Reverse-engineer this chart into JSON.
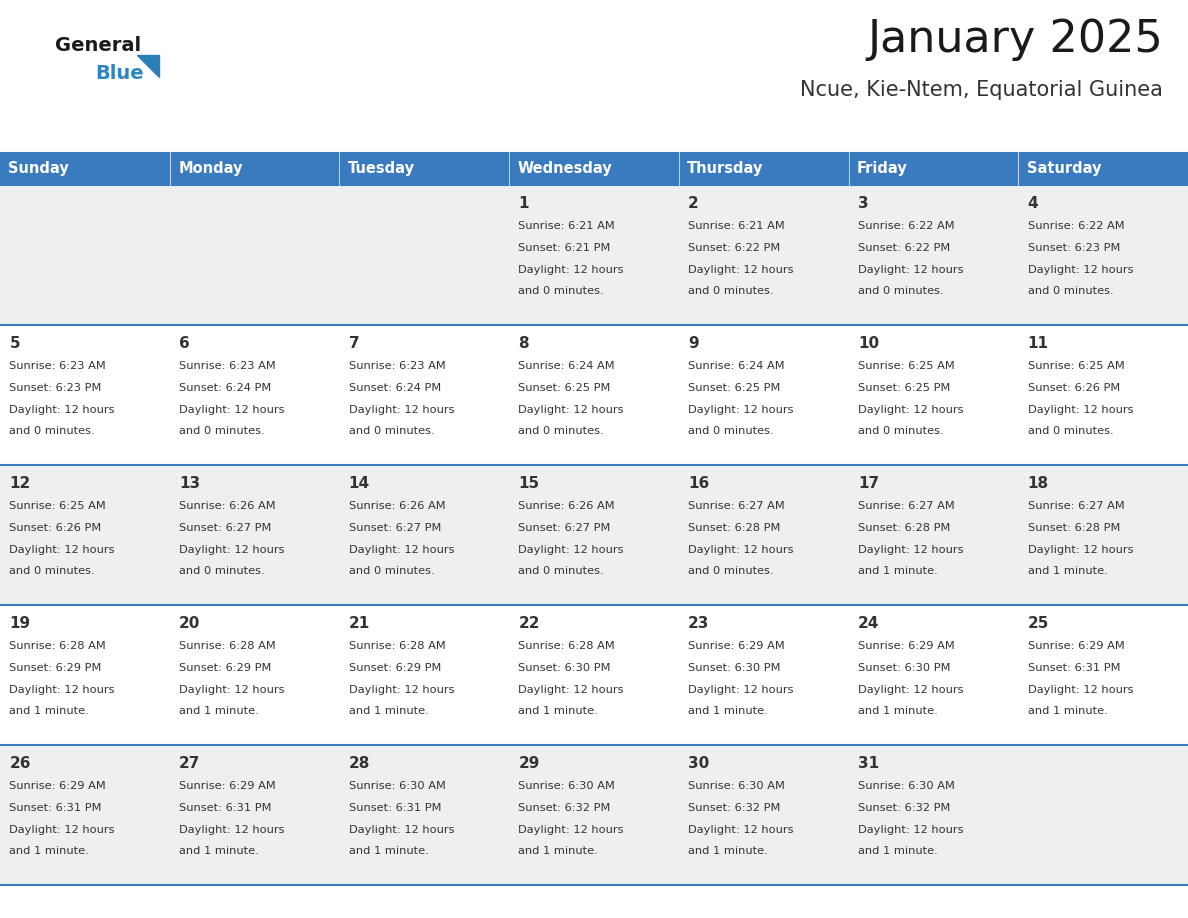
{
  "title": "January 2025",
  "subtitle": "Ncue, Kie-Ntem, Equatorial Guinea",
  "header_bg": "#3a7abf",
  "header_text": "#ffffff",
  "row_bg_odd": "#efefef",
  "row_bg_even": "#ffffff",
  "cell_border_color": "#3a7abf",
  "text_color": "#333333",
  "day_headers": [
    "Sunday",
    "Monday",
    "Tuesday",
    "Wednesday",
    "Thursday",
    "Friday",
    "Saturday"
  ],
  "logo_general_color": "#1a1a1a",
  "logo_blue_color": "#2e86c1",
  "logo_triangle_color": "#2980b9",
  "calendar": [
    [
      null,
      null,
      null,
      {
        "day": 1,
        "sunrise": "6:21 AM",
        "sunset": "6:21 PM",
        "daylight": "12 hours\nand 0 minutes."
      },
      {
        "day": 2,
        "sunrise": "6:21 AM",
        "sunset": "6:22 PM",
        "daylight": "12 hours\nand 0 minutes."
      },
      {
        "day": 3,
        "sunrise": "6:22 AM",
        "sunset": "6:22 PM",
        "daylight": "12 hours\nand 0 minutes."
      },
      {
        "day": 4,
        "sunrise": "6:22 AM",
        "sunset": "6:23 PM",
        "daylight": "12 hours\nand 0 minutes."
      }
    ],
    [
      {
        "day": 5,
        "sunrise": "6:23 AM",
        "sunset": "6:23 PM",
        "daylight": "12 hours\nand 0 minutes."
      },
      {
        "day": 6,
        "sunrise": "6:23 AM",
        "sunset": "6:24 PM",
        "daylight": "12 hours\nand 0 minutes."
      },
      {
        "day": 7,
        "sunrise": "6:23 AM",
        "sunset": "6:24 PM",
        "daylight": "12 hours\nand 0 minutes."
      },
      {
        "day": 8,
        "sunrise": "6:24 AM",
        "sunset": "6:25 PM",
        "daylight": "12 hours\nand 0 minutes."
      },
      {
        "day": 9,
        "sunrise": "6:24 AM",
        "sunset": "6:25 PM",
        "daylight": "12 hours\nand 0 minutes."
      },
      {
        "day": 10,
        "sunrise": "6:25 AM",
        "sunset": "6:25 PM",
        "daylight": "12 hours\nand 0 minutes."
      },
      {
        "day": 11,
        "sunrise": "6:25 AM",
        "sunset": "6:26 PM",
        "daylight": "12 hours\nand 0 minutes."
      }
    ],
    [
      {
        "day": 12,
        "sunrise": "6:25 AM",
        "sunset": "6:26 PM",
        "daylight": "12 hours\nand 0 minutes."
      },
      {
        "day": 13,
        "sunrise": "6:26 AM",
        "sunset": "6:27 PM",
        "daylight": "12 hours\nand 0 minutes."
      },
      {
        "day": 14,
        "sunrise": "6:26 AM",
        "sunset": "6:27 PM",
        "daylight": "12 hours\nand 0 minutes."
      },
      {
        "day": 15,
        "sunrise": "6:26 AM",
        "sunset": "6:27 PM",
        "daylight": "12 hours\nand 0 minutes."
      },
      {
        "day": 16,
        "sunrise": "6:27 AM",
        "sunset": "6:28 PM",
        "daylight": "12 hours\nand 0 minutes."
      },
      {
        "day": 17,
        "sunrise": "6:27 AM",
        "sunset": "6:28 PM",
        "daylight": "12 hours\nand 1 minute."
      },
      {
        "day": 18,
        "sunrise": "6:27 AM",
        "sunset": "6:28 PM",
        "daylight": "12 hours\nand 1 minute."
      }
    ],
    [
      {
        "day": 19,
        "sunrise": "6:28 AM",
        "sunset": "6:29 PM",
        "daylight": "12 hours\nand 1 minute."
      },
      {
        "day": 20,
        "sunrise": "6:28 AM",
        "sunset": "6:29 PM",
        "daylight": "12 hours\nand 1 minute."
      },
      {
        "day": 21,
        "sunrise": "6:28 AM",
        "sunset": "6:29 PM",
        "daylight": "12 hours\nand 1 minute."
      },
      {
        "day": 22,
        "sunrise": "6:28 AM",
        "sunset": "6:30 PM",
        "daylight": "12 hours\nand 1 minute."
      },
      {
        "day": 23,
        "sunrise": "6:29 AM",
        "sunset": "6:30 PM",
        "daylight": "12 hours\nand 1 minute."
      },
      {
        "day": 24,
        "sunrise": "6:29 AM",
        "sunset": "6:30 PM",
        "daylight": "12 hours\nand 1 minute."
      },
      {
        "day": 25,
        "sunrise": "6:29 AM",
        "sunset": "6:31 PM",
        "daylight": "12 hours\nand 1 minute."
      }
    ],
    [
      {
        "day": 26,
        "sunrise": "6:29 AM",
        "sunset": "6:31 PM",
        "daylight": "12 hours\nand 1 minute."
      },
      {
        "day": 27,
        "sunrise": "6:29 AM",
        "sunset": "6:31 PM",
        "daylight": "12 hours\nand 1 minute."
      },
      {
        "day": 28,
        "sunrise": "6:30 AM",
        "sunset": "6:31 PM",
        "daylight": "12 hours\nand 1 minute."
      },
      {
        "day": 29,
        "sunrise": "6:30 AM",
        "sunset": "6:32 PM",
        "daylight": "12 hours\nand 1 minute."
      },
      {
        "day": 30,
        "sunrise": "6:30 AM",
        "sunset": "6:32 PM",
        "daylight": "12 hours\nand 1 minute."
      },
      {
        "day": 31,
        "sunrise": "6:30 AM",
        "sunset": "6:32 PM",
        "daylight": "12 hours\nand 1 minute."
      },
      null
    ]
  ],
  "figwidth": 11.88,
  "figheight": 9.18,
  "dpi": 100
}
